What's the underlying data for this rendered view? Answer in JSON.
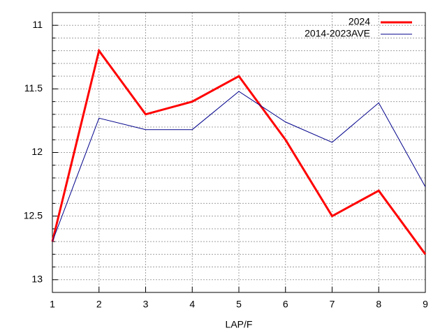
{
  "chart_data": {
    "type": "line",
    "xlabel": "LAP/F",
    "x": [
      1,
      2,
      3,
      4,
      5,
      6,
      7,
      8,
      9
    ],
    "series": [
      {
        "name": "2024",
        "color": "#ff0000",
        "width": 3,
        "values": [
          12.7,
          11.2,
          11.7,
          11.6,
          11.4,
          11.9,
          12.5,
          12.3,
          12.8
        ]
      },
      {
        "name": "2014-2023AVE",
        "color": "#00008b",
        "width": 1,
        "values": [
          12.7,
          11.73,
          11.82,
          11.82,
          11.52,
          11.76,
          11.92,
          11.61,
          12.27
        ]
      }
    ],
    "xlim": [
      1,
      9
    ],
    "xticks": [
      1,
      2,
      3,
      4,
      5,
      6,
      7,
      8,
      9
    ],
    "ylim": [
      13.1,
      10.9
    ],
    "yticks": [
      11,
      11.5,
      12,
      12.5,
      13
    ],
    "yminorticks": [
      10.9,
      11.1,
      11.2,
      11.3,
      11.4,
      11.6,
      11.7,
      11.8,
      11.9,
      12.1,
      12.2,
      12.3,
      12.4,
      12.6,
      12.7,
      12.8,
      12.9,
      13.1
    ],
    "grid": true,
    "legend": "top-right"
  }
}
